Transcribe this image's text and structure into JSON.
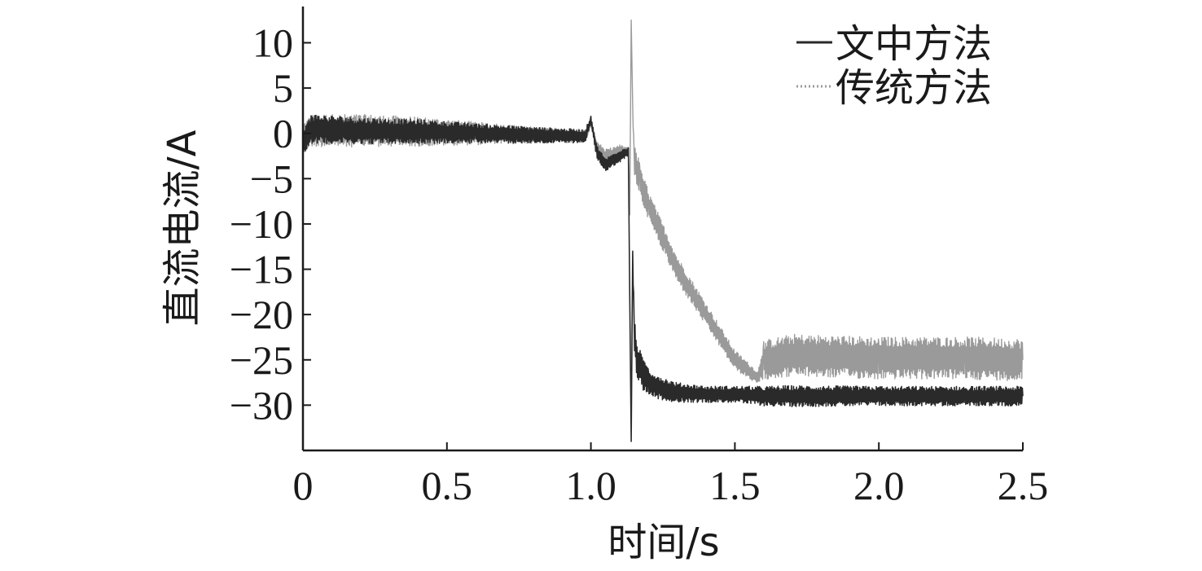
{
  "chart_data": {
    "type": "line",
    "title": "",
    "xlabel": "时间/s",
    "ylabel": "直流电流/A",
    "xlim": [
      0,
      2.5
    ],
    "ylim": [
      -35,
      14
    ],
    "x_ticks": [
      0,
      0.5,
      1.0,
      1.5,
      2.0,
      2.5
    ],
    "x_tick_labels": [
      "0",
      "0.5",
      "1.0",
      "1.5",
      "2.0",
      "2.5"
    ],
    "y_ticks": [
      10,
      5,
      0,
      -5,
      -10,
      -15,
      -20,
      -25,
      -30
    ],
    "y_tick_labels": [
      "10",
      "5",
      "0",
      "−5",
      "−10",
      "−15",
      "−20",
      "−25",
      "−30"
    ],
    "grid": false,
    "legend_position": "top-right",
    "series": [
      {
        "name": "文中方法",
        "color": "#2a2a2a",
        "style": "solid",
        "x": [
          0,
          0.03,
          0.2,
          0.4,
          0.6,
          0.8,
          0.98,
          1.0,
          1.02,
          1.05,
          1.1,
          1.13,
          1.14,
          1.145,
          1.15,
          1.16,
          1.18,
          1.2,
          1.25,
          1.3,
          1.4,
          1.5,
          1.6,
          1.7,
          2.0,
          2.3,
          2.5
        ],
        "y": [
          -1,
          0.5,
          0.3,
          0.2,
          0,
          -0.2,
          -0.3,
          1.5,
          -2,
          -3.5,
          -2.5,
          -2,
          -34,
          -13,
          -22,
          -25,
          -26.5,
          -27.5,
          -28.2,
          -28.6,
          -28.8,
          -28.8,
          -29,
          -29,
          -29,
          -29,
          -29
        ],
        "noise": [
          1.5,
          1.8,
          1.6,
          1.5,
          1.2,
          1.0,
          0.8,
          0.5,
          0.8,
          0.8,
          0.8,
          0.5,
          0,
          0,
          2.5,
          2.2,
          2.0,
          1.6,
          1.4,
          1.2,
          1.0,
          1.0,
          1.2,
          1.3,
          1.2,
          1.2,
          1.2
        ]
      },
      {
        "name": "传统方法",
        "color": "#9a9a9a",
        "style": "dotted",
        "x": [
          0,
          0.03,
          0.2,
          0.4,
          0.6,
          0.8,
          0.98,
          1.0,
          1.02,
          1.05,
          1.1,
          1.13,
          1.135,
          1.14,
          1.145,
          1.15,
          1.17,
          1.2,
          1.3,
          1.4,
          1.5,
          1.58,
          1.6,
          1.7,
          2.0,
          2.3,
          2.5
        ],
        "y": [
          -0.5,
          0.3,
          0.3,
          0.2,
          0,
          -0.2,
          -0.3,
          1.2,
          -1.5,
          -2.5,
          -2,
          -2,
          -9,
          12.5,
          3,
          -3,
          -5,
          -8,
          -15,
          -20,
          -25,
          -27,
          -25,
          -24.5,
          -24.8,
          -24.8,
          -25
        ],
        "noise": [
          1.8,
          2.0,
          2.0,
          1.8,
          1.4,
          1.0,
          0.8,
          0.5,
          0.8,
          0.8,
          0.8,
          0.5,
          0,
          0,
          0,
          2.0,
          2.0,
          1.8,
          1.6,
          1.4,
          1.2,
          0.8,
          2.4,
          2.6,
          2.6,
          2.6,
          2.6
        ]
      }
    ]
  }
}
